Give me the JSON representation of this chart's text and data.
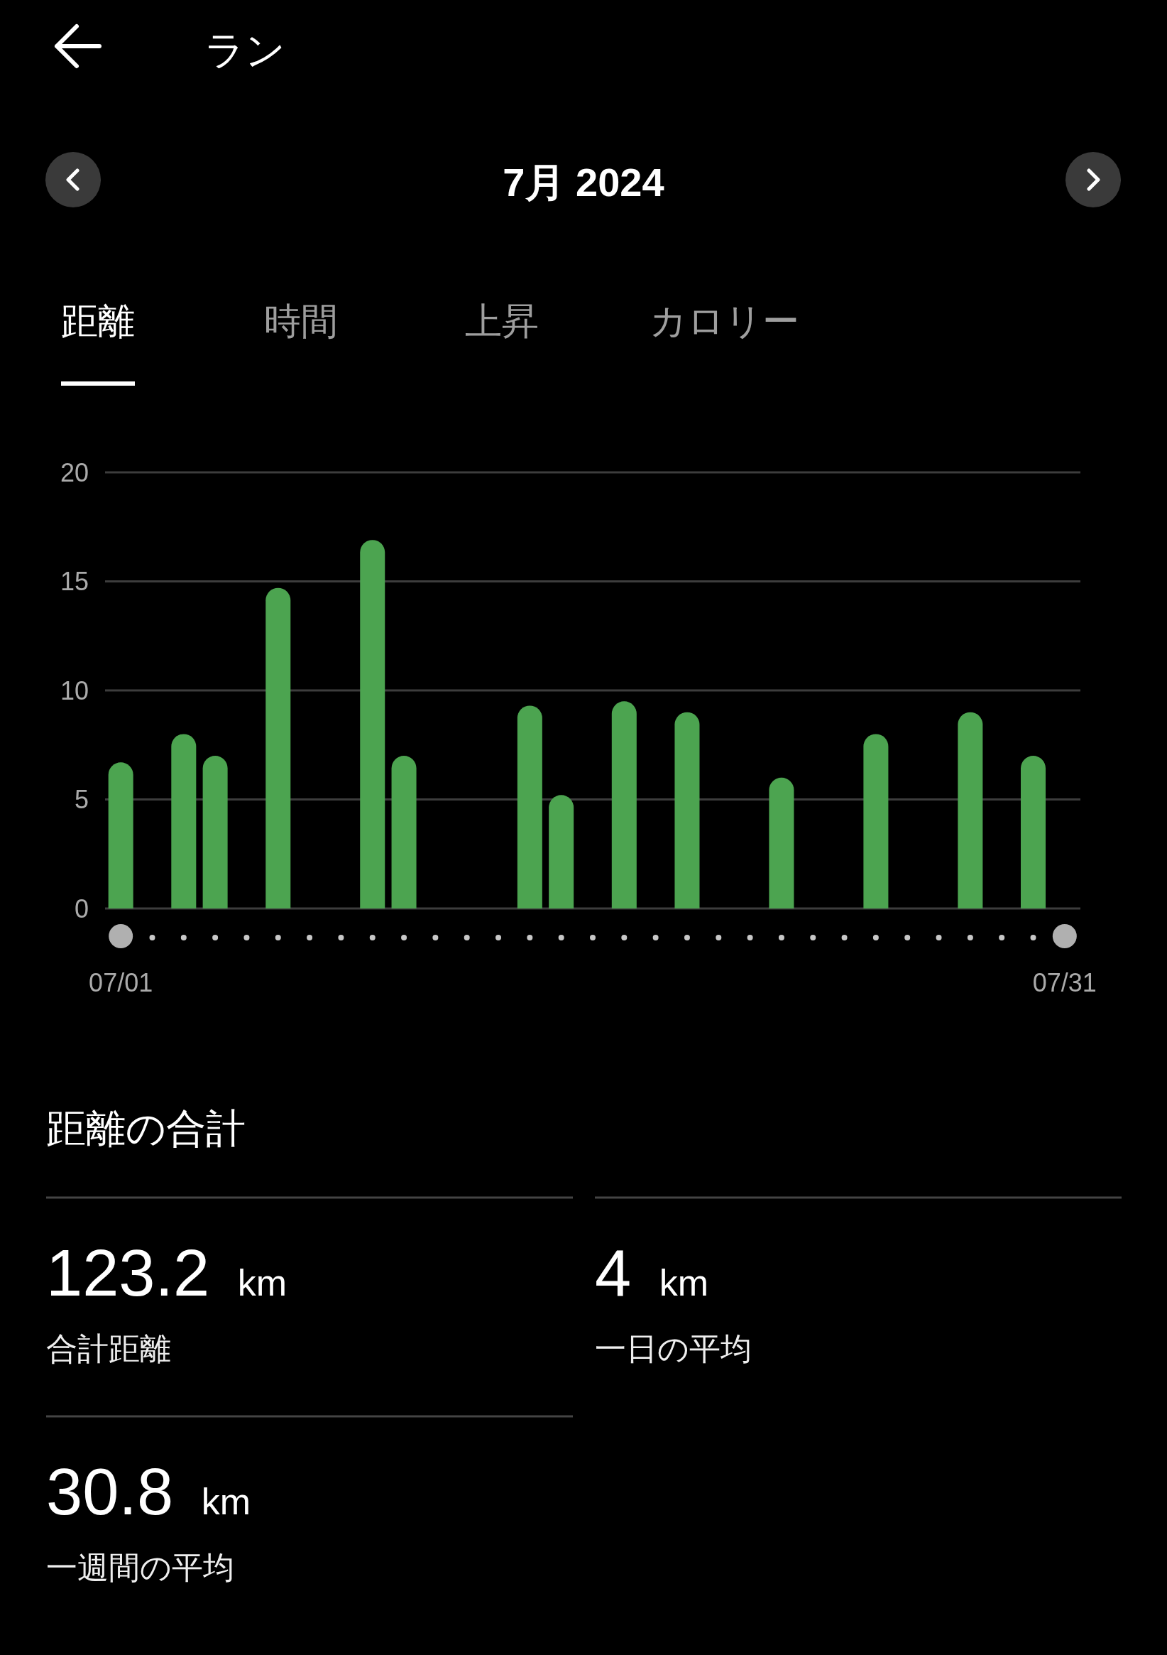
{
  "chart_data": [
    {
      "type": "bar",
      "title": "ラン",
      "subtitle": "7月 2024",
      "annotations": [
        "距離",
        "時間",
        "上昇",
        "カロリー"
      ],
      "categories": [
        "07/01",
        null,
        null,
        null,
        null,
        null,
        null,
        null,
        null,
        null,
        null,
        null,
        null,
        null,
        null,
        null,
        null,
        null,
        null,
        null,
        null,
        null,
        null,
        null,
        null,
        null,
        null,
        null,
        null,
        null,
        "07/31"
      ],
      "values": [
        6.7,
        null,
        8.0,
        7.0,
        null,
        14.7,
        null,
        null,
        16.9,
        7.0,
        null,
        null,
        null,
        9.3,
        5.2,
        null,
        9.5,
        null,
        9.0,
        null,
        null,
        6.0,
        null,
        null,
        8.0,
        null,
        null,
        9.0,
        null,
        7.0,
        null
      ],
      "color": "#4ca450",
      "ylim": [
        0,
        20
      ],
      "yticks": [
        0,
        5,
        10,
        15,
        20
      ],
      "grid": "y"
    },
    {
      "type": "other",
      "title": "距離の合計",
      "annotations": [
        "123.2 km",
        "合計距離",
        "4 km",
        "一日の平均",
        "30.8 km",
        "一週間の平均"
      ]
    }
  ]
}
